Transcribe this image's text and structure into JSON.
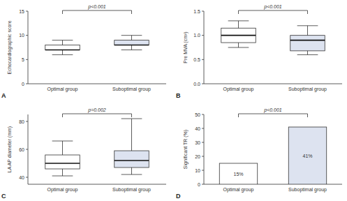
{
  "chart_data": [
    {
      "type": "box",
      "panel_label": "A",
      "y_label": "Echocardiographic score",
      "categories": [
        "Optimal group",
        "Suboptimal group"
      ],
      "boxes": [
        {
          "min": 6,
          "q1": 7,
          "median": 7,
          "q3": 8,
          "max": 9
        },
        {
          "min": 7,
          "q1": 8,
          "median": 8,
          "q3": 9,
          "max": 10
        }
      ],
      "colors": [
        "#ffffff",
        "#dde3f0"
      ],
      "annotation": "p<0.001",
      "ylim": [
        0,
        15
      ],
      "yticks": [
        0,
        5,
        10,
        15
      ]
    },
    {
      "type": "box",
      "panel_label": "B",
      "y_label": "Pre MVA (cm²)",
      "categories": [
        "Optimal group",
        "Suboptimal group"
      ],
      "boxes": [
        {
          "min": 0.75,
          "q1": 0.85,
          "median": 1.0,
          "q3": 1.15,
          "max": 1.3
        },
        {
          "min": 0.6,
          "q1": 0.68,
          "median": 0.9,
          "q3": 1.0,
          "max": 1.2
        }
      ],
      "colors": [
        "#ffffff",
        "#dde3f0"
      ],
      "annotation": "p<0.001",
      "ylim": [
        0,
        1.5
      ],
      "yticks": [
        {
          "value": 0,
          "label": "0.0"
        },
        0.5,
        {
          "value": 1,
          "label": "1.0"
        },
        1.5
      ]
    },
    {
      "type": "box",
      "panel_label": "C",
      "y_label": "LA AP diameter (mm)",
      "categories": [
        "Optimal group",
        "Suboptimal group"
      ],
      "boxes": [
        {
          "min": 41,
          "q1": 46,
          "median": 50,
          "q3": 56,
          "max": 66
        },
        {
          "min": 42,
          "q1": 47,
          "median": 52,
          "q3": 59,
          "max": 82
        }
      ],
      "colors": [
        "#ffffff",
        "#dde3f0"
      ],
      "annotation": "p=0.002",
      "ylim": [
        35,
        85
      ],
      "yticks": [
        40,
        60,
        80
      ]
    },
    {
      "type": "bar",
      "panel_label": "D",
      "y_label": "Significant TR (%)",
      "categories": [
        "Optimal group",
        "Suboptimal group"
      ],
      "values": [
        15,
        41
      ],
      "value_labels": [
        "15%",
        "41%"
      ],
      "data_labels": true,
      "colors": [
        "#ffffff",
        "#dde3f0"
      ],
      "annotation": "p<0.001",
      "ylim": [
        0,
        50
      ],
      "yticks": [
        0,
        10,
        20,
        30,
        40,
        50
      ]
    }
  ]
}
